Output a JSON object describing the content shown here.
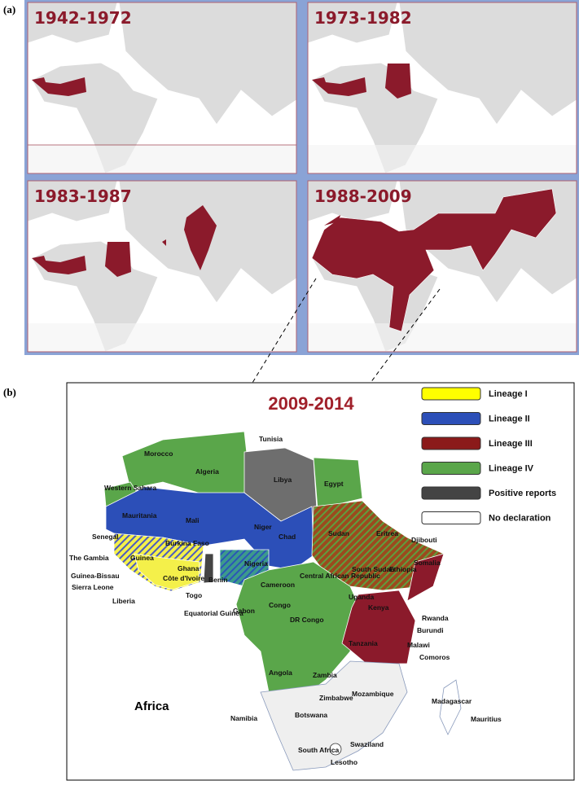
{
  "panel_a": {
    "label": "(a)",
    "maps": [
      {
        "period": "1942-1972"
      },
      {
        "period": "1973-1982"
      },
      {
        "period": "1983-1987"
      },
      {
        "period": "1988-2009"
      }
    ]
  },
  "panel_b": {
    "label": "(b)",
    "title": "2009-2014",
    "legend": [
      {
        "name": "Lineage I",
        "color": "#ffff00"
      },
      {
        "name": "Lineage II",
        "color": "#2c4fb8"
      },
      {
        "name": "Lineage III",
        "color": "#8b1a1a"
      },
      {
        "name": "Lineage IV",
        "color": "#5aa64a"
      },
      {
        "name": "Positive reports",
        "color": "#444444"
      },
      {
        "name": "No declaration",
        "color": "#ffffff"
      }
    ],
    "countries": [
      "Tunisia",
      "Morocco",
      "Algeria",
      "Libya",
      "Egypt",
      "Western Sahara",
      "Mauritania",
      "Mali",
      "Niger",
      "Chad",
      "Sudan",
      "Eritrea",
      "Djibouti",
      "Senegal",
      "The Gambia",
      "Guinea",
      "Burkina Faso",
      "Ghana",
      "Côte d'Ivoire",
      "Benin",
      "Nigeria",
      "Cameroon",
      "Central African Republic",
      "South Sudan",
      "Ethiopia",
      "Somalia",
      "Guinea-Bissau",
      "Sierra Leone",
      "Liberia",
      "Togo",
      "Equatorial Guinea",
      "Gabon",
      "Congo",
      "Uganda",
      "Kenya",
      "Rwanda",
      "Burundi",
      "DR Congo",
      "Tanzania",
      "Malawi",
      "Comoros",
      "Angola",
      "Zambia",
      "Mozambique",
      "Zimbabwe",
      "Madagascar",
      "Namibia",
      "Botswana",
      "Mauritius",
      "Swaziland",
      "South Africa",
      "Lesotho"
    ],
    "region": "Africa"
  }
}
